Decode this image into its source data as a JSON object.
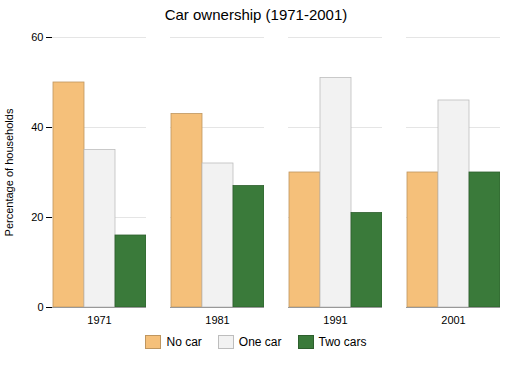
{
  "chart_data": {
    "type": "bar",
    "title": "Car ownership (1971-2001)",
    "ylabel": "Percentage of households",
    "categories": [
      "1971",
      "1981",
      "1991",
      "2001"
    ],
    "series": [
      {
        "name": "No car",
        "color": "#F5C07A",
        "values": [
          50,
          43,
          30,
          30
        ]
      },
      {
        "name": "One car",
        "color": "#F2F2F2",
        "values": [
          35,
          32,
          51,
          46
        ]
      },
      {
        "name": "Two cars",
        "color": "#3A7A3A",
        "values": [
          16,
          27,
          21,
          30
        ]
      }
    ],
    "ylim": [
      0,
      60
    ],
    "yticks": [
      0,
      20,
      40,
      60
    ],
    "grid": true,
    "legend": "bottom"
  }
}
